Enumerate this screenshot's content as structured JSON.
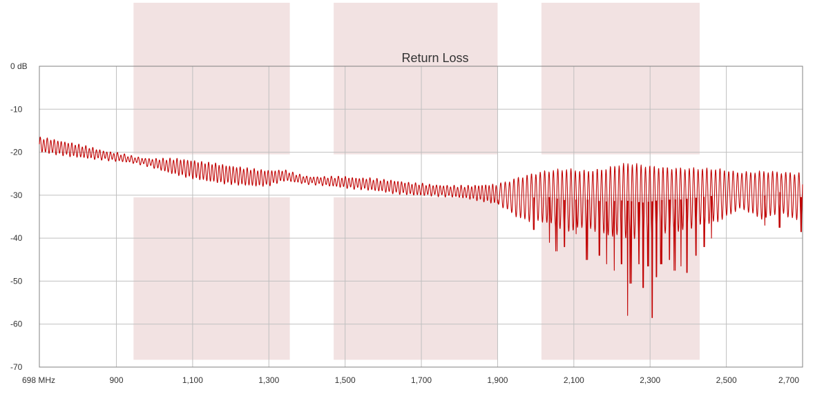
{
  "chart_data": {
    "type": "line",
    "title": "Return Loss",
    "xlabel": "",
    "ylabel": "",
    "xlim": [
      698,
      2700
    ],
    "ylim": [
      -70,
      0
    ],
    "grid": true,
    "x_ticks": [
      {
        "value": 698,
        "label": "698 MHz"
      },
      {
        "value": 900,
        "label": "900"
      },
      {
        "value": 1100,
        "label": "1,100"
      },
      {
        "value": 1300,
        "label": "1,300"
      },
      {
        "value": 1500,
        "label": "1,500"
      },
      {
        "value": 1700,
        "label": "1,700"
      },
      {
        "value": 1900,
        "label": "1,900"
      },
      {
        "value": 2100,
        "label": "2,100"
      },
      {
        "value": 2300,
        "label": "2,300"
      },
      {
        "value": 2500,
        "label": "2,500"
      },
      {
        "value": 2700,
        "label": "2,700"
      }
    ],
    "y_ticks": [
      {
        "value": 0,
        "label": "0 dB"
      },
      {
        "value": -10,
        "label": "-10"
      },
      {
        "value": -20,
        "label": "-20"
      },
      {
        "value": -30,
        "label": "-30"
      },
      {
        "value": -40,
        "label": "-40"
      },
      {
        "value": -50,
        "label": "-50"
      },
      {
        "value": -60,
        "label": "-60"
      },
      {
        "value": -70,
        "label": "-70"
      }
    ],
    "bands": [
      {
        "x0": 945,
        "x1": 1355
      },
      {
        "x0": 1470,
        "x1": 1900
      },
      {
        "x0": 2015,
        "x1": 2430
      }
    ],
    "series": [
      {
        "color": "#c00000",
        "x": [
          698,
          720,
          740,
          760,
          780,
          800,
          820,
          840,
          860,
          880,
          900,
          920,
          940,
          960,
          980,
          1000,
          1020,
          1040,
          1060,
          1080,
          1100,
          1120,
          1140,
          1160,
          1180,
          1200,
          1220,
          1240,
          1260,
          1280,
          1300,
          1320,
          1340,
          1360,
          1380,
          1400,
          1420,
          1440,
          1460,
          1480,
          1500,
          1520,
          1540,
          1560,
          1580,
          1600,
          1620,
          1640,
          1660,
          1680,
          1700,
          1720,
          1740,
          1760,
          1780,
          1800,
          1820,
          1840,
          1860,
          1880,
          1900,
          1920,
          1940,
          1960,
          1980,
          2000,
          2020,
          2040,
          2060,
          2080,
          2100,
          2120,
          2140,
          2160,
          2180,
          2200,
          2220,
          2240,
          2260,
          2280,
          2300,
          2320,
          2340,
          2360,
          2380,
          2400,
          2420,
          2440,
          2460,
          2480,
          2500,
          2520,
          2540,
          2560,
          2580,
          2600,
          2620,
          2640,
          2660,
          2680,
          2700
        ],
        "center": [
          -18.3,
          -18.5,
          -18.8,
          -19.1,
          -19.4,
          -19.7,
          -20.0,
          -20.3,
          -20.6,
          -20.9,
          -21.1,
          -21.4,
          -21.7,
          -22.0,
          -22.3,
          -22.6,
          -22.9,
          -23.2,
          -23.4,
          -23.7,
          -24.0,
          -24.3,
          -24.6,
          -24.8,
          -25.1,
          -25.3,
          -25.5,
          -25.7,
          -25.9,
          -26.0,
          -26.0,
          -25.7,
          -25.4,
          -25.8,
          -26.2,
          -26.5,
          -26.6,
          -26.7,
          -26.8,
          -26.9,
          -27.0,
          -27.2,
          -27.3,
          -27.4,
          -27.6,
          -27.8,
          -28.0,
          -28.2,
          -28.4,
          -28.6,
          -28.7,
          -28.8,
          -28.9,
          -29.0,
          -29.1,
          -29.2,
          -29.3,
          -29.4,
          -29.5,
          -29.6,
          -29.8,
          -30.0,
          -30.4,
          -30.6,
          -30.6,
          -30.5,
          -30.3,
          -30.5,
          -30.9,
          -31.2,
          -31.1,
          -30.9,
          -31.1,
          -31.3,
          -31.5,
          -31.4,
          -31.2,
          -31.3,
          -31.5,
          -31.7,
          -31.5,
          -31.2,
          -31.1,
          -31.0,
          -31.0,
          -30.8,
          -30.6,
          -30.4,
          -30.2,
          -30.0,
          -29.6,
          -29.2,
          -28.9,
          -29.3,
          -29.8,
          -30.1,
          -29.6,
          -29.3,
          -29.8,
          -30.3,
          -30.5
        ],
        "amplitude": [
          1.6,
          1.6,
          1.6,
          1.5,
          1.5,
          1.4,
          1.3,
          1.2,
          1.0,
          0.9,
          0.9,
          0.8,
          0.7,
          0.7,
          0.8,
          1.0,
          1.3,
          1.6,
          1.8,
          1.9,
          2.0,
          2.0,
          2.1,
          2.1,
          2.1,
          2.0,
          2.0,
          1.9,
          1.9,
          1.8,
          1.7,
          1.4,
          1.2,
          1.0,
          0.9,
          0.8,
          0.8,
          0.9,
          1.0,
          1.1,
          1.2,
          1.2,
          1.2,
          1.3,
          1.3,
          1.3,
          1.4,
          1.4,
          1.3,
          1.3,
          1.3,
          1.2,
          1.2,
          1.2,
          1.2,
          1.3,
          1.4,
          1.6,
          1.8,
          2.0,
          2.3,
          3.0,
          4.0,
          4.8,
          5.3,
          5.6,
          5.8,
          6.2,
          6.8,
          7.2,
          7.0,
          6.5,
          6.8,
          7.2,
          7.6,
          8.0,
          8.3,
          8.6,
          8.8,
          8.6,
          8.2,
          7.8,
          7.5,
          7.3,
          7.2,
          7.0,
          6.8,
          6.5,
          6.3,
          6.0,
          5.4,
          4.6,
          4.2,
          4.6,
          5.2,
          5.6,
          5.0,
          4.6,
          5.0,
          5.4,
          5.8
        ],
        "min_dips": [
          {
            "x": 1995,
            "y": -38.0
          },
          {
            "x": 2035,
            "y": -41.0
          },
          {
            "x": 2055,
            "y": -43.0
          },
          {
            "x": 2075,
            "y": -42.0
          },
          {
            "x": 2105,
            "y": -39.0
          },
          {
            "x": 2135,
            "y": -45.0
          },
          {
            "x": 2165,
            "y": -44.0
          },
          {
            "x": 2185,
            "y": -46.0
          },
          {
            "x": 2205,
            "y": -47.5
          },
          {
            "x": 2225,
            "y": -46.0
          },
          {
            "x": 2240,
            "y": -58.0
          },
          {
            "x": 2250,
            "y": -50.5
          },
          {
            "x": 2270,
            "y": -46.0
          },
          {
            "x": 2280,
            "y": -51.5
          },
          {
            "x": 2295,
            "y": -46.5
          },
          {
            "x": 2305,
            "y": -58.5
          },
          {
            "x": 2315,
            "y": -49.0
          },
          {
            "x": 2330,
            "y": -46.0
          },
          {
            "x": 2350,
            "y": -45.0
          },
          {
            "x": 2365,
            "y": -47.5
          },
          {
            "x": 2380,
            "y": -46.5
          },
          {
            "x": 2395,
            "y": -48.0
          },
          {
            "x": 2420,
            "y": -44.0
          },
          {
            "x": 2440,
            "y": -42.0
          },
          {
            "x": 2460,
            "y": -40.0
          },
          {
            "x": 2600,
            "y": -37.0
          },
          {
            "x": 2640,
            "y": -37.5
          },
          {
            "x": 2695,
            "y": -38.5
          }
        ]
      }
    ]
  },
  "colors": {
    "band_fill": "#f2e2e2",
    "grid": "#bfbfbf",
    "axis": "#808080",
    "series": "#c00000"
  }
}
